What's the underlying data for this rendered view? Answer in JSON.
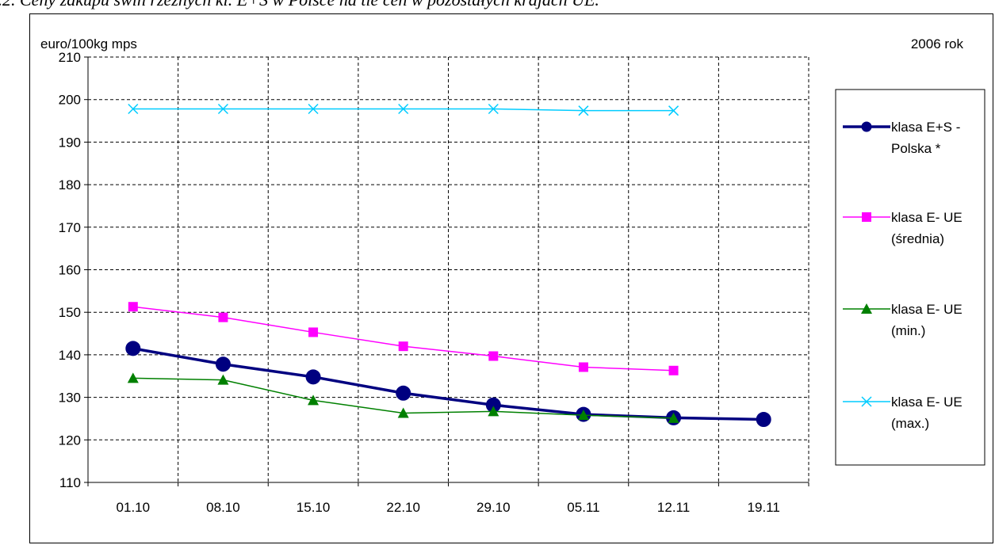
{
  "caption": "..2. Ceny zakupu świń rzeźnych kl. E+S w Polsce na tle cen w pozostałych krajach UE.",
  "chart_data": {
    "type": "line",
    "ylabel": "euro/100kg mps",
    "corner_note": "2006 rok",
    "categories": [
      "01.10",
      "08.10",
      "15.10",
      "22.10",
      "29.10",
      "05.11",
      "12.11",
      "19.11"
    ],
    "ylim": [
      110,
      210
    ],
    "yticks": [
      110,
      120,
      130,
      140,
      150,
      160,
      170,
      180,
      190,
      200,
      210
    ],
    "grid": true,
    "legend_position": "right",
    "series": [
      {
        "name": "klasa E+S - Polska *",
        "legend_lines": [
          "klasa E+S -",
          "Polska *"
        ],
        "color": "#000080",
        "marker": "circle",
        "x": [
          "01.10",
          "08.10",
          "15.10",
          "22.10",
          "29.10",
          "05.11",
          "12.11",
          "19.11"
        ],
        "values": [
          141.5,
          137.8,
          134.8,
          131.0,
          128.2,
          126.0,
          125.2,
          124.8
        ]
      },
      {
        "name": "klasa E- UE (średnia)",
        "legend_lines": [
          "klasa E- UE",
          "(średnia)"
        ],
        "color": "#FF00FF",
        "marker": "square",
        "x": [
          "01.10",
          "08.10",
          "15.10",
          "22.10",
          "29.10",
          "05.11",
          "12.11"
        ],
        "values": [
          151.3,
          148.8,
          145.3,
          142.0,
          139.7,
          137.1,
          136.3
        ]
      },
      {
        "name": "klasa E- UE (min.)",
        "legend_lines": [
          "klasa E- UE",
          "(min.)"
        ],
        "color": "#008000",
        "marker": "triangle",
        "x": [
          "01.10",
          "08.10",
          "15.10",
          "22.10",
          "29.10",
          "05.11",
          "12.11"
        ],
        "values": [
          134.5,
          134.1,
          129.3,
          126.3,
          126.7,
          125.8,
          125.1
        ]
      },
      {
        "name": "klasa E- UE (max.)",
        "legend_lines": [
          "klasa E- UE",
          "(max.)"
        ],
        "color": "#00CCFF",
        "marker": "x",
        "x": [
          "01.10",
          "08.10",
          "15.10",
          "22.10",
          "29.10",
          "05.11",
          "12.11"
        ],
        "values": [
          197.8,
          197.8,
          197.8,
          197.8,
          197.8,
          197.4,
          197.4
        ]
      }
    ]
  }
}
